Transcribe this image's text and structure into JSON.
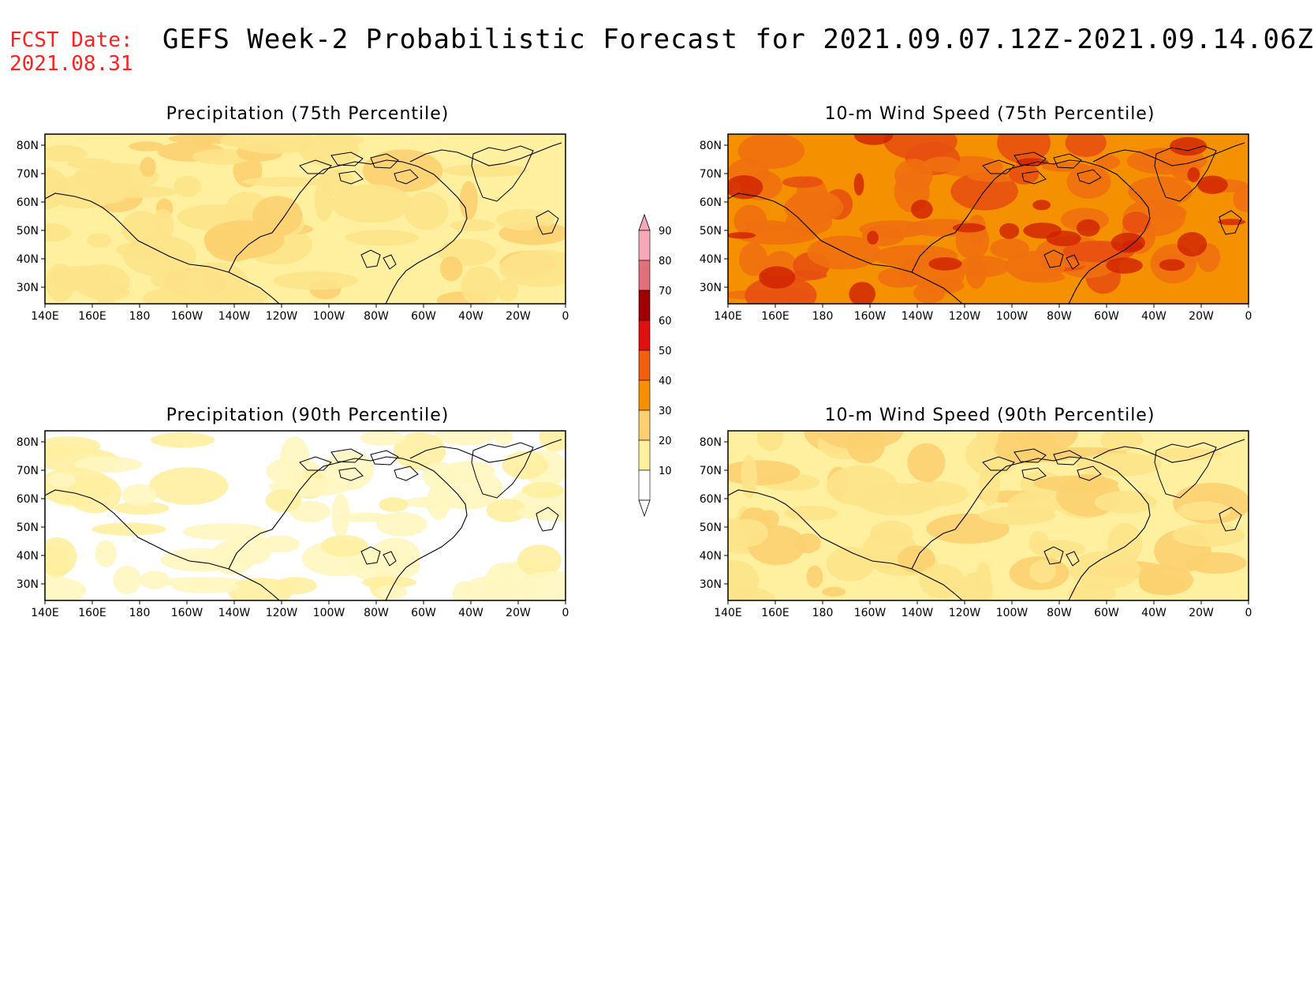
{
  "header": {
    "fcst_label": "FCST Date:",
    "fcst_date": "2021.08.31",
    "title": "GEFS Week-2 Probabilistic Forecast for 2021.09.07.12Z-2021.09.14.06Z"
  },
  "panels": [
    {
      "id": "p75",
      "title": "Precipitation (75th Percentile)",
      "shade_level": 2
    },
    {
      "id": "w75",
      "title": "10-m Wind Speed (75th Percentile)",
      "shade_level": 4
    },
    {
      "id": "p90",
      "title": "Precipitation (90th Percentile)",
      "shade_level": 0
    },
    {
      "id": "w90",
      "title": "10-m Wind Speed (90th Percentile)",
      "shade_level": 2
    }
  ],
  "axes": {
    "lon_labels": [
      "140E",
      "160E",
      "180",
      "160W",
      "140W",
      "120W",
      "100W",
      "80W",
      "60W",
      "40W",
      "20W",
      "0"
    ],
    "lat_labels": [
      "80N",
      "70N",
      "60N",
      "50N",
      "40N",
      "30N"
    ]
  },
  "colorbar": {
    "labels": [
      "90",
      "80",
      "70",
      "60",
      "50",
      "40",
      "30",
      "20",
      "10"
    ],
    "colors": [
      "#f5a9b8",
      "#e0707a",
      "#a00000",
      "#e01010",
      "#f06010",
      "#f59000",
      "#fcd070",
      "#fff0a0",
      "#ffffff"
    ]
  }
}
